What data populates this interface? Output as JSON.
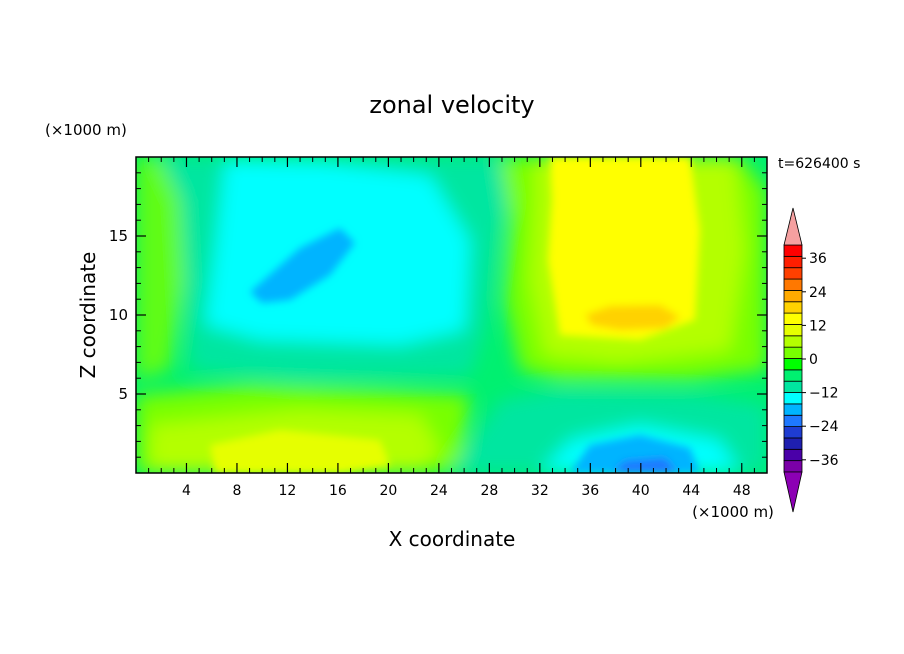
{
  "chart_data": {
    "type": "heatmap",
    "title": "zonal velocity",
    "xlabel": "X coordinate",
    "ylabel": "Z coordinate",
    "x_unit_label": "(×1000 m)",
    "z_unit_label": "(×1000 m)",
    "time_label": "t=626400 s",
    "xlim": [
      0,
      50
    ],
    "ylim": [
      0,
      20
    ],
    "x_ticks": [
      4,
      8,
      12,
      16,
      20,
      24,
      28,
      32,
      36,
      40,
      44,
      48
    ],
    "x_tick_labels": [
      "4",
      "8",
      "12",
      "16",
      "20",
      "24",
      "28",
      "32",
      "36",
      "40",
      "44",
      "48"
    ],
    "y_ticks": [
      5,
      10,
      15
    ],
    "y_tick_labels": [
      "5",
      "10",
      "15"
    ],
    "colorbar": {
      "tick_labels": [
        "36",
        "24",
        "12",
        "0",
        "−12",
        "−24",
        "−36"
      ],
      "tick_values": [
        36,
        24,
        12,
        0,
        -12,
        -24,
        -36
      ],
      "level_colors": [
        "#7b00a8",
        "#4a00a8",
        "#1f1fb0",
        "#1e3cd2",
        "#1e78ff",
        "#00b4ff",
        "#00ffff",
        "#00e6a0",
        "#00f070",
        "#00ff00",
        "#78ff00",
        "#b4ff00",
        "#e6ff00",
        "#ffff00",
        "#ffd200",
        "#ffaa00",
        "#ff7800",
        "#ff4000",
        "#ff1e00",
        "#ff0000"
      ],
      "extend_low_color": "#8c00b4",
      "extend_high_color": "#f5a0a0"
    },
    "fields": [
      {
        "name": "upper-left negative cell",
        "center_x": 14,
        "center_z": 13,
        "min_value": -14
      },
      {
        "name": "upper-right positive cell",
        "center_x": 39,
        "center_z": 10,
        "max_value": 15
      },
      {
        "name": "lower-left positive band",
        "center_x": 12,
        "center_z": 1.5,
        "max_value": 12
      },
      {
        "name": "lower-right negative cell",
        "center_x": 40,
        "center_z": 0.5,
        "min_value": -22
      }
    ]
  }
}
